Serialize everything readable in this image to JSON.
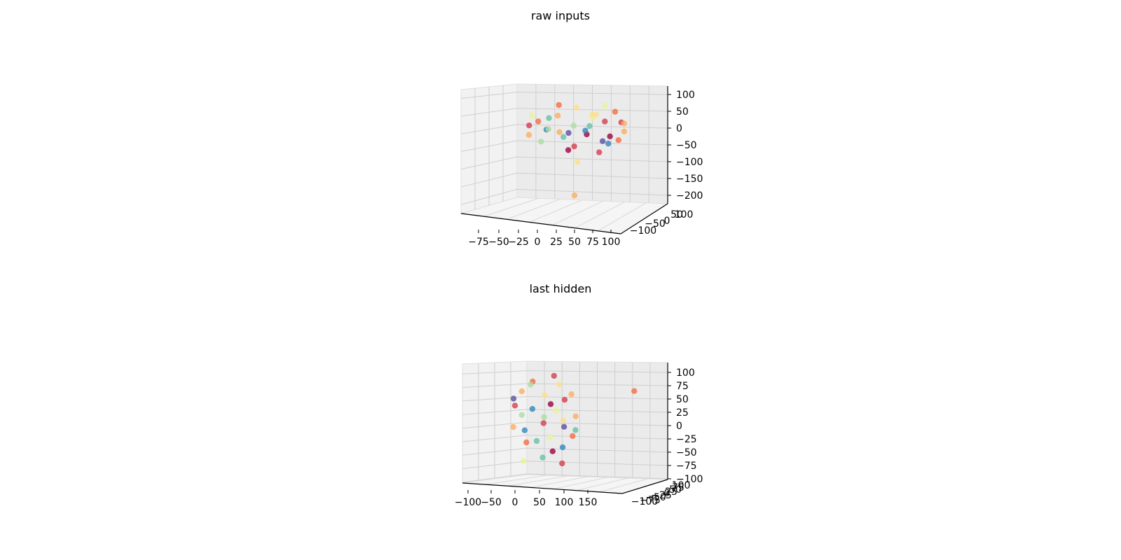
{
  "chart_data": [
    {
      "type": "scatter",
      "projection": "3d",
      "title": "raw inputs",
      "xlabel": "",
      "ylabel": "",
      "zlabel": "",
      "x_ticks": [
        "−75",
        "−50",
        "−25",
        "0",
        "25",
        "50",
        "75",
        "100"
      ],
      "y_ticks": [
        "−100",
        "−50",
        "0",
        "50",
        "100"
      ],
      "z_ticks": [
        "100",
        "50",
        "0",
        "−50",
        "−100",
        "−150",
        "−200"
      ],
      "xlim": [
        -90,
        100
      ],
      "ylim": [
        -110,
        110
      ],
      "zlim": [
        -230,
        120
      ],
      "grid": true,
      "series": [
        {
          "points": [
            [
              -55,
              -20,
              5,
              "#d53e4f"
            ],
            [
              -45,
              10,
              20,
              "#f46d43"
            ],
            [
              -30,
              -40,
              -10,
              "#3288bd"
            ],
            [
              -20,
              30,
              40,
              "#fdae61"
            ],
            [
              -10,
              0,
              -30,
              "#66c2a5"
            ],
            [
              0,
              50,
              10,
              "#abdda4"
            ],
            [
              10,
              -30,
              60,
              "#fee08b"
            ],
            [
              20,
              20,
              -20,
              "#9e0142"
            ],
            [
              30,
              -10,
              30,
              "#e6f598"
            ],
            [
              40,
              40,
              -40,
              "#5e4fa2"
            ],
            [
              50,
              -50,
              15,
              "#d53e4f"
            ],
            [
              60,
              0,
              50,
              "#f46d43"
            ],
            [
              70,
              30,
              -10,
              "#fdae61"
            ],
            [
              -35,
              60,
              0,
              "#abdda4"
            ],
            [
              -25,
              -60,
              25,
              "#66c2a5"
            ],
            [
              5,
              -5,
              -60,
              "#d53e4f"
            ],
            [
              15,
              60,
              -5,
              "#3288bd"
            ],
            [
              35,
              -70,
              35,
              "#fee08b"
            ],
            [
              45,
              15,
              70,
              "#e6f598"
            ],
            [
              55,
              -25,
              -30,
              "#9e0142"
            ],
            [
              -60,
              40,
              -20,
              "#fdae61"
            ],
            [
              -15,
              -15,
              70,
              "#f46d43"
            ],
            [
              25,
              5,
              5,
              "#66c2a5"
            ],
            [
              65,
              45,
              20,
              "#d53e4f"
            ],
            [
              -40,
              -5,
              -45,
              "#abdda4"
            ],
            [
              0,
              -45,
              -75,
              "#9e0142"
            ],
            [
              75,
              -35,
              10,
              "#fdae61"
            ],
            [
              -5,
              25,
              -15,
              "#5e4fa2"
            ],
            [
              30,
              55,
              45,
              "#fee08b"
            ],
            [
              50,
              10,
              -50,
              "#3288bd"
            ],
            [
              -50,
              -35,
              35,
              "#e6f598"
            ],
            [
              10,
              -15,
              -110,
              "#fee08b"
            ],
            [
              60,
              60,
              -35,
              "#f46d43"
            ],
            [
              40,
              -20,
              -80,
              "#d53e4f"
            ],
            [
              -10,
              -70,
              -20,
              "#fdae61"
            ],
            [
              5,
              0,
              -215,
              "#fdae61"
            ]
          ]
        }
      ]
    },
    {
      "type": "scatter",
      "projection": "3d",
      "title": "last hidden",
      "xlabel": "",
      "ylabel": "",
      "zlabel": "",
      "x_ticks": [
        "−100",
        "−50",
        "0",
        "50",
        "100",
        "150"
      ],
      "y_ticks": [
        "−100",
        "−75",
        "−50",
        "−25",
        "0",
        "25",
        "50",
        "75",
        "100"
      ],
      "z_ticks": [
        "100",
        "75",
        "50",
        "25",
        "0",
        "−25",
        "−50",
        "−75",
        "−100"
      ],
      "xlim": [
        -110,
        190
      ],
      "ylim": [
        -110,
        110
      ],
      "zlim": [
        -110,
        110
      ],
      "grid": true,
      "series": [
        {
          "points": [
            [
              -60,
              -20,
              30,
              "#d53e4f"
            ],
            [
              -50,
              10,
              60,
              "#fdae61"
            ],
            [
              -40,
              -30,
              -20,
              "#3288bd"
            ],
            [
              -30,
              20,
              80,
              "#f46d43"
            ],
            [
              -20,
              0,
              -40,
              "#66c2a5"
            ],
            [
              -10,
              40,
              10,
              "#abdda4"
            ],
            [
              0,
              -40,
              50,
              "#fee08b"
            ],
            [
              10,
              10,
              -60,
              "#9e0142"
            ],
            [
              20,
              -20,
              20,
              "#e6f598"
            ],
            [
              30,
              30,
              -10,
              "#5e4fa2"
            ],
            [
              40,
              -50,
              40,
              "#d53e4f"
            ],
            [
              50,
              0,
              -30,
              "#f46d43"
            ],
            [
              -70,
              40,
              -10,
              "#fdae61"
            ],
            [
              -25,
              -60,
              70,
              "#abdda4"
            ],
            [
              -15,
              60,
              -70,
              "#66c2a5"
            ],
            [
              15,
              -10,
              90,
              "#d53e4f"
            ],
            [
              25,
              50,
              -50,
              "#3288bd"
            ],
            [
              35,
              -30,
              0,
              "#fee08b"
            ],
            [
              -45,
              -5,
              -80,
              "#e6f598"
            ],
            [
              5,
              20,
              35,
              "#9e0142"
            ],
            [
              -55,
              55,
              15,
              "#abdda4"
            ],
            [
              45,
              25,
              55,
              "#fdae61"
            ],
            [
              -35,
              -45,
              -45,
              "#f46d43"
            ],
            [
              -5,
              -15,
              -5,
              "#d53e4f"
            ],
            [
              60,
              -40,
              -20,
              "#66c2a5"
            ],
            [
              20,
              35,
              75,
              "#fee08b"
            ],
            [
              -65,
              0,
              45,
              "#5e4fa2"
            ],
            [
              0,
              55,
              -30,
              "#e6f598"
            ],
            [
              30,
              -5,
              -85,
              "#d53e4f"
            ],
            [
              -30,
              15,
              25,
              "#3288bd"
            ],
            [
              55,
              10,
              10,
              "#fdae61"
            ],
            [
              170,
              0,
              60,
              "#f46d43"
            ]
          ]
        }
      ]
    }
  ]
}
